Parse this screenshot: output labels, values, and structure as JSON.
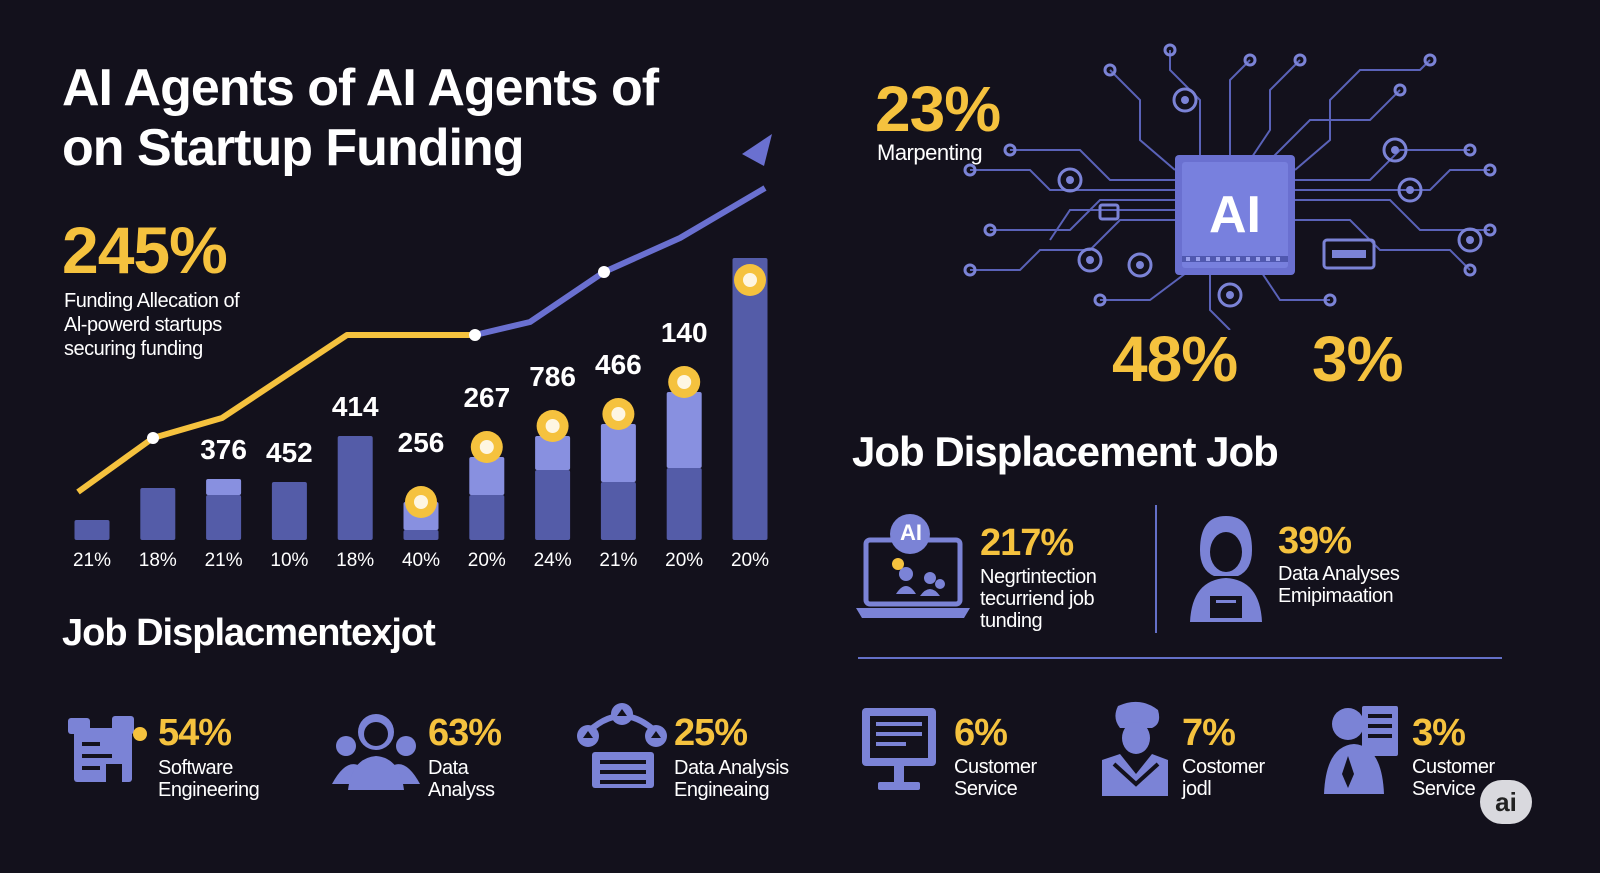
{
  "header": {
    "title_line1": "AI Agents of AI Agents of",
    "title_line2": "on Startup Funding"
  },
  "hero": {
    "value": "245%",
    "desc_line1": "Funding Allecation of",
    "desc_line2": "Al-powerd startups",
    "desc_line3": "securing funding"
  },
  "chart_data": {
    "type": "bar",
    "categories": [
      "21%",
      "18%",
      "21%",
      "10%",
      "18%",
      "40%",
      "20%",
      "24%",
      "21%",
      "20%",
      "20%"
    ],
    "series": [
      {
        "values": [
          20,
          52,
          45,
          58,
          104,
          10,
          45,
          70,
          58,
          72,
          282
        ]
      },
      {
        "values": [
          0,
          0,
          16,
          0,
          0,
          28,
          38,
          34,
          58,
          76,
          0
        ]
      }
    ],
    "data_labels": [
      "",
      "",
      "376",
      "452",
      "414",
      "256",
      "267",
      "786",
      "466",
      "140",
      ""
    ],
    "line_series": [
      {
        "color": "#f5c23e",
        "values": [
          48,
          102,
          122,
          205,
          205,
          205
        ]
      },
      {
        "color": "#6a70d0",
        "values": [
          205,
          218,
          268,
          302,
          352
        ]
      }
    ],
    "colors": {
      "bar_dark": "#545ca8",
      "bar_light": "#8890e0",
      "line_yellow": "#f5c23e",
      "line_blue": "#6a70d0",
      "marker": "#f5c23e"
    }
  },
  "left_section": {
    "title": "Job Displacmentexjot",
    "stats": [
      {
        "value": "54%",
        "label1": "Software",
        "label2": "Engineering",
        "icon": "office-building-icon"
      },
      {
        "value": "63%",
        "label1": "Data",
        "label2": "Analyss",
        "icon": "team-people-icon"
      },
      {
        "value": "25%",
        "label1": "Data Analysis",
        "label2": "Engineaing",
        "icon": "house-network-icon"
      }
    ]
  },
  "right_panel": {
    "top_value": "23%",
    "top_label": "Marpenting",
    "chip_label": "AI",
    "value_left": "48%",
    "value_right": "3%",
    "section_title": "Job Displacement Job",
    "feature_stats": [
      {
        "value": "217%",
        "label1": "Negrtintection",
        "label2": "tecurriend job",
        "label3": "tunding",
        "laptop_label": "AI"
      },
      {
        "value": "39%",
        "label1": "Data Analyses",
        "label2": "Emipimaation"
      }
    ],
    "bottom_stats": [
      {
        "value": "6%",
        "label1": "Customer",
        "label2": "Service",
        "icon": "monitor-icon"
      },
      {
        "value": "7%",
        "label1": "Costomer",
        "label2": "jodl",
        "icon": "worker-icon"
      },
      {
        "value": "3%",
        "label1": "Customer",
        "label2": "Service",
        "icon": "person-document-icon"
      }
    ]
  },
  "watermark": "ai",
  "colors": {
    "background": "#13111c",
    "accent_yellow": "#f5c23e",
    "accent_blue": "#6a70d0",
    "icon_blue": "#7b83d6"
  }
}
